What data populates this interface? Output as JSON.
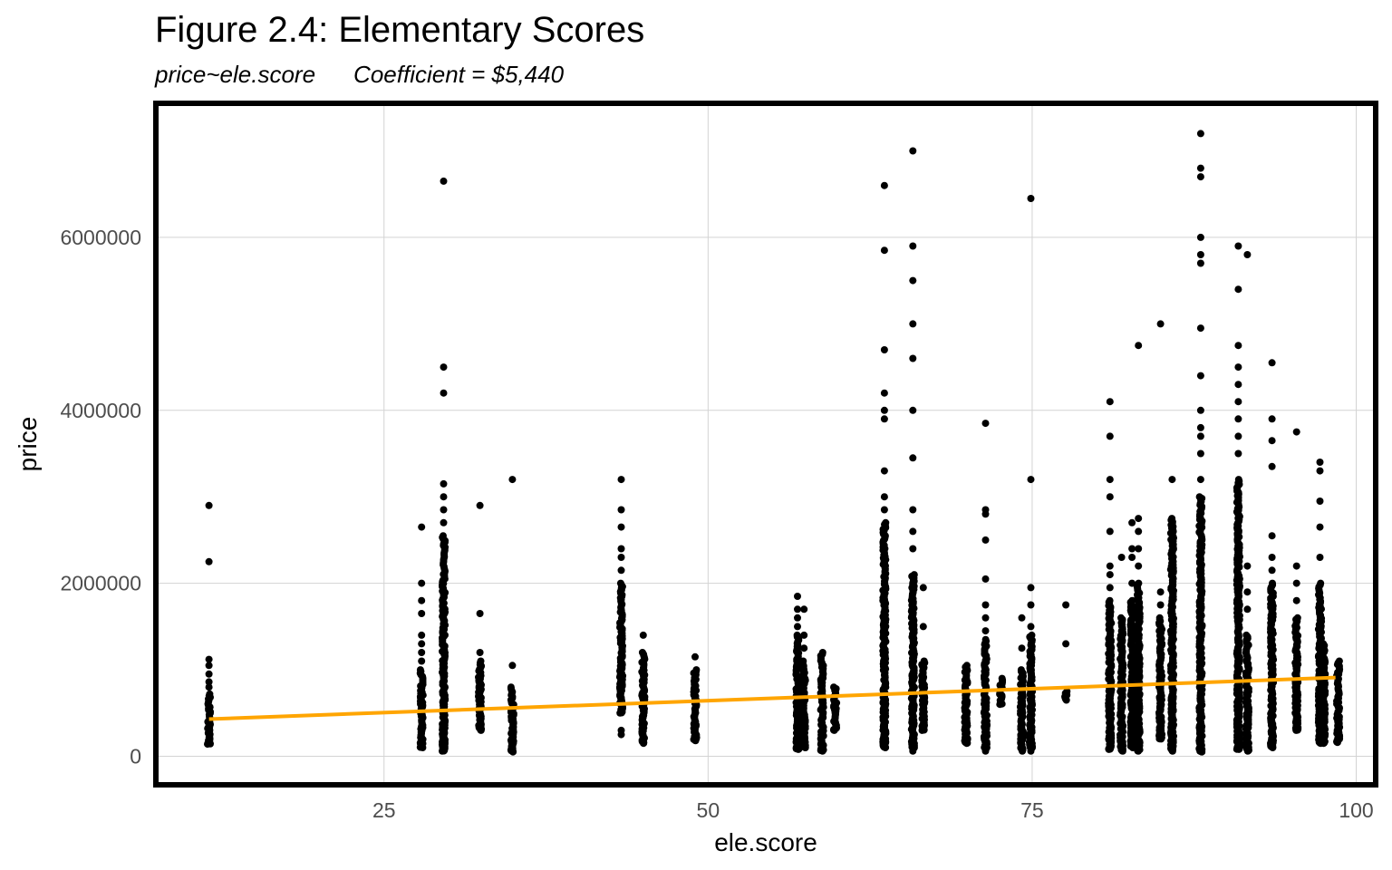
{
  "chart_data": {
    "type": "scatter",
    "title": "Figure 2.4: Elementary Scores",
    "subtitle": {
      "formula": "price~ele.score",
      "coefficient": "Coefficient = $5,440"
    },
    "xlabel": "ele.score",
    "ylabel": "price",
    "xlim": [
      7.4,
      101.5
    ],
    "ylim": [
      -330000,
      7550000
    ],
    "x_ticks": [
      25,
      50,
      75,
      100
    ],
    "y_ticks": [
      0,
      2000000,
      4000000,
      6000000
    ],
    "x_tick_labels": [
      "25",
      "50",
      "75",
      "100"
    ],
    "y_tick_labels": [
      "0",
      "2000000",
      "4000000",
      "6000000"
    ],
    "grid": true,
    "point_color": "#000000",
    "line_color": "#FFA500",
    "panel_border_color": "#000000",
    "grid_color": "#d3d3d3",
    "regression_line": {
      "x": [
        11.5,
        98.4
      ],
      "y": [
        430000,
        910000
      ]
    },
    "columns": [
      {
        "x": 11.5,
        "dense": [
          140000,
          720000
        ],
        "outliers": [
          800000,
          860000,
          950000,
          1050000,
          1120000,
          2250000,
          2900000
        ]
      },
      {
        "x": 27.9,
        "dense": [
          100000,
          1000000
        ],
        "outliers": [
          1100000,
          1200000,
          1300000,
          1400000,
          1650000,
          1800000,
          2000000,
          2650000
        ]
      },
      {
        "x": 29.6,
        "dense": [
          60000,
          2550000
        ],
        "outliers": [
          2700000,
          2850000,
          3000000,
          3150000,
          4200000,
          4500000,
          6650000
        ]
      },
      {
        "x": 32.4,
        "dense": [
          300000,
          1100000
        ],
        "outliers": [
          1200000,
          1650000,
          2900000
        ]
      },
      {
        "x": 34.9,
        "dense": [
          50000,
          800000
        ],
        "outliers": [
          1050000,
          3200000
        ]
      },
      {
        "x": 43.3,
        "dense": [
          500000,
          2000000
        ],
        "outliers": [
          250000,
          300000,
          2150000,
          2300000,
          2400000,
          2650000,
          2850000,
          3200000
        ]
      },
      {
        "x": 45.0,
        "dense": [
          150000,
          1200000
        ],
        "outliers": [
          1400000
        ]
      },
      {
        "x": 49.0,
        "dense": [
          180000,
          1000000
        ],
        "outliers": [
          1150000
        ]
      },
      {
        "x": 56.9,
        "dense": [
          80000,
          1400000
        ],
        "outliers": [
          1500000,
          1600000,
          1700000,
          1850000
        ]
      },
      {
        "x": 57.4,
        "dense": [
          100000,
          1100000
        ],
        "outliers": [
          1250000,
          1400000,
          1700000
        ]
      },
      {
        "x": 58.8,
        "dense": [
          60000,
          1200000
        ],
        "outliers": []
      },
      {
        "x": 59.8,
        "dense": [
          300000,
          800000
        ],
        "outliers": []
      },
      {
        "x": 63.6,
        "dense": [
          100000,
          2700000
        ],
        "outliers": [
          2850000,
          3000000,
          3300000,
          3900000,
          4000000,
          4200000,
          4700000,
          5850000,
          6600000
        ]
      },
      {
        "x": 65.8,
        "dense": [
          100000,
          2100000
        ],
        "outliers": [
          60000,
          2400000,
          2600000,
          2850000,
          3450000,
          4000000,
          4600000,
          5000000,
          5500000,
          5900000,
          7000000
        ]
      },
      {
        "x": 66.6,
        "dense": [
          300000,
          1100000
        ],
        "outliers": [
          1500000,
          1950000
        ]
      },
      {
        "x": 69.9,
        "dense": [
          150000,
          1050000
        ],
        "outliers": []
      },
      {
        "x": 71.4,
        "dense": [
          100000,
          1350000
        ],
        "outliers": [
          60000,
          1450000,
          1600000,
          1750000,
          2050000,
          2500000,
          2800000,
          2850000,
          3850000
        ]
      },
      {
        "x": 72.6,
        "dense": [
          600000,
          900000
        ],
        "outliers": []
      },
      {
        "x": 74.2,
        "dense": [
          60000,
          1000000
        ],
        "outliers": [
          1250000,
          1600000
        ]
      },
      {
        "x": 74.9,
        "dense": [
          100000,
          1400000
        ],
        "outliers": [
          60000,
          1500000,
          1750000,
          1950000,
          3200000,
          6450000
        ]
      },
      {
        "x": 77.6,
        "dense": [
          650000,
          750000
        ],
        "outliers": [
          1300000,
          1750000
        ]
      },
      {
        "x": 81.0,
        "dense": [
          80000,
          1800000
        ],
        "outliers": [
          1950000,
          2100000,
          2200000,
          2600000,
          3000000,
          3200000,
          3700000,
          4100000
        ]
      },
      {
        "x": 81.9,
        "dense": [
          60000,
          1600000
        ],
        "outliers": [
          2300000
        ]
      },
      {
        "x": 82.7,
        "dense": [
          100000,
          1800000
        ],
        "outliers": [
          2000000,
          2300000,
          2400000,
          2700000
        ]
      },
      {
        "x": 83.2,
        "dense": [
          60000,
          2000000
        ],
        "outliers": [
          2200000,
          2400000,
          2600000,
          2750000,
          4750000
        ]
      },
      {
        "x": 84.9,
        "dense": [
          200000,
          1600000
        ],
        "outliers": [
          1750000,
          1900000,
          5000000
        ]
      },
      {
        "x": 85.8,
        "dense": [
          60000,
          2750000
        ],
        "outliers": [
          3200000
        ]
      },
      {
        "x": 88.0,
        "dense": [
          50000,
          3000000
        ],
        "outliers": [
          3200000,
          3500000,
          3700000,
          3800000,
          4000000,
          4400000,
          4950000,
          5700000,
          5800000,
          6000000,
          6700000,
          6800000,
          7200000
        ]
      },
      {
        "x": 90.9,
        "dense": [
          80000,
          3200000
        ],
        "outliers": [
          3500000,
          3700000,
          3900000,
          4100000,
          4300000,
          4500000,
          4750000,
          5400000,
          5900000
        ]
      },
      {
        "x": 91.6,
        "dense": [
          60000,
          1400000
        ],
        "outliers": [
          1700000,
          1900000,
          2200000,
          5800000
        ]
      },
      {
        "x": 93.5,
        "dense": [
          100000,
          2000000
        ],
        "outliers": [
          2150000,
          2300000,
          2550000,
          3350000,
          3650000,
          3900000,
          4550000
        ]
      },
      {
        "x": 95.4,
        "dense": [
          300000,
          1600000
        ],
        "outliers": [
          1800000,
          2000000,
          2200000,
          3750000
        ]
      },
      {
        "x": 97.2,
        "dense": [
          150000,
          2000000
        ],
        "outliers": [
          2300000,
          2650000,
          2950000,
          3300000,
          3400000
        ]
      },
      {
        "x": 97.5,
        "dense": [
          150000,
          1300000
        ],
        "outliers": []
      },
      {
        "x": 98.6,
        "dense": [
          160000,
          1100000
        ],
        "outliers": []
      }
    ]
  }
}
